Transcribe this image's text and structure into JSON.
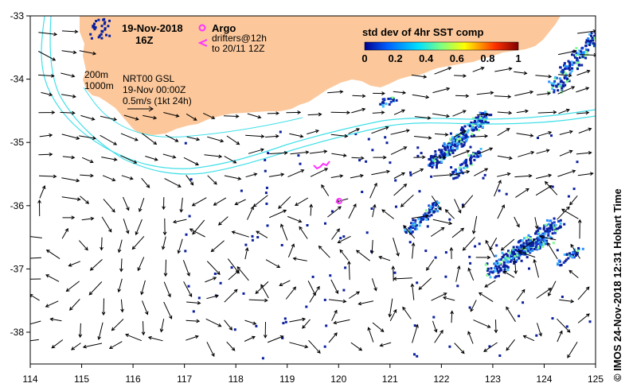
{
  "map": {
    "date": "19-Nov-2018",
    "hour": "16Z",
    "argo_label": "Argo",
    "drifters_label": "drifters@12h",
    "drifters_sub": "to 20/11 12Z",
    "contour_200": "200m",
    "contour_1000": "1000m",
    "product": "NRT00 GSL",
    "product_time": "19-Nov 00:00Z",
    "scale_label": "0.5m/s (1kt 24h)",
    "colorbar_title": "std dev of 4hr SST comp",
    "colorbar_ticks": [
      "0",
      "0.2",
      "0.4",
      "0.6",
      "0.8",
      "1"
    ],
    "credit": "©  IMOS 24-Nov-2018 12:31 Hobart Time",
    "colors": {
      "land": "#fcc89b",
      "contour": "#40e0e8",
      "argo": "#ff33ff",
      "sst_low": "#0a1f9e"
    },
    "x_ticks": [
      "114",
      "115",
      "116",
      "117",
      "118",
      "119",
      "120",
      "121",
      "122",
      "123",
      "124",
      "125"
    ],
    "y_ticks": [
      "-33",
      "-34",
      "-35",
      "-36",
      "-37",
      "-38"
    ]
  }
}
